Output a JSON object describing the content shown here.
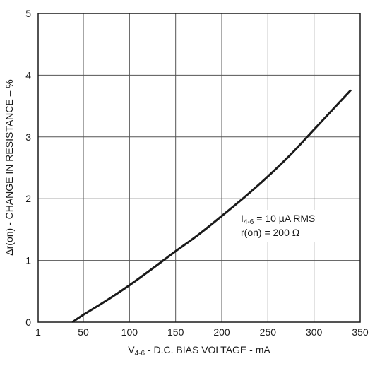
{
  "chart_data": {
    "type": "line",
    "title": "",
    "xlabel": {
      "main": "V",
      "sub": "4-6",
      "rest": " - D.C. BIAS VOLTAGE - mA"
    },
    "ylabel": "Δr(on) - CHANGE IN RESISTANCE – %",
    "xlim": [
      1,
      350
    ],
    "ylim": [
      0,
      5
    ],
    "x_ticks": [
      {
        "value": 1,
        "label": "1"
      },
      {
        "value": 50,
        "label": "50"
      },
      {
        "value": 100,
        "label": "100"
      },
      {
        "value": 150,
        "label": "150"
      },
      {
        "value": 200,
        "label": "200"
      },
      {
        "value": 250,
        "label": "250"
      },
      {
        "value": 300,
        "label": "300"
      },
      {
        "value": 350,
        "label": "350"
      }
    ],
    "y_ticks": [
      {
        "value": 0,
        "label": "0"
      },
      {
        "value": 1,
        "label": "1"
      },
      {
        "value": 2,
        "label": "2"
      },
      {
        "value": 3,
        "label": "3"
      },
      {
        "value": 4,
        "label": "4"
      },
      {
        "value": 5,
        "label": "5"
      }
    ],
    "grid": true,
    "series": [
      {
        "x": [
          38,
          50,
          75,
          100,
          125,
          150,
          175,
          200,
          225,
          250,
          275,
          300,
          325,
          340
        ],
        "y": [
          0.0,
          0.12,
          0.35,
          0.6,
          0.87,
          1.15,
          1.42,
          1.72,
          2.03,
          2.36,
          2.72,
          3.12,
          3.52,
          3.76
        ]
      }
    ],
    "annotations": [
      {
        "main": "I",
        "sub": "4-6",
        "rest": " = 10 µA RMS"
      },
      {
        "main": "r(on) = 200 Ω",
        "sub": "",
        "rest": ""
      }
    ]
  },
  "colors": {
    "line": "#1a1a1a",
    "grid": "#555555",
    "frame": "#1a1a1a",
    "background": "#ffffff"
  }
}
